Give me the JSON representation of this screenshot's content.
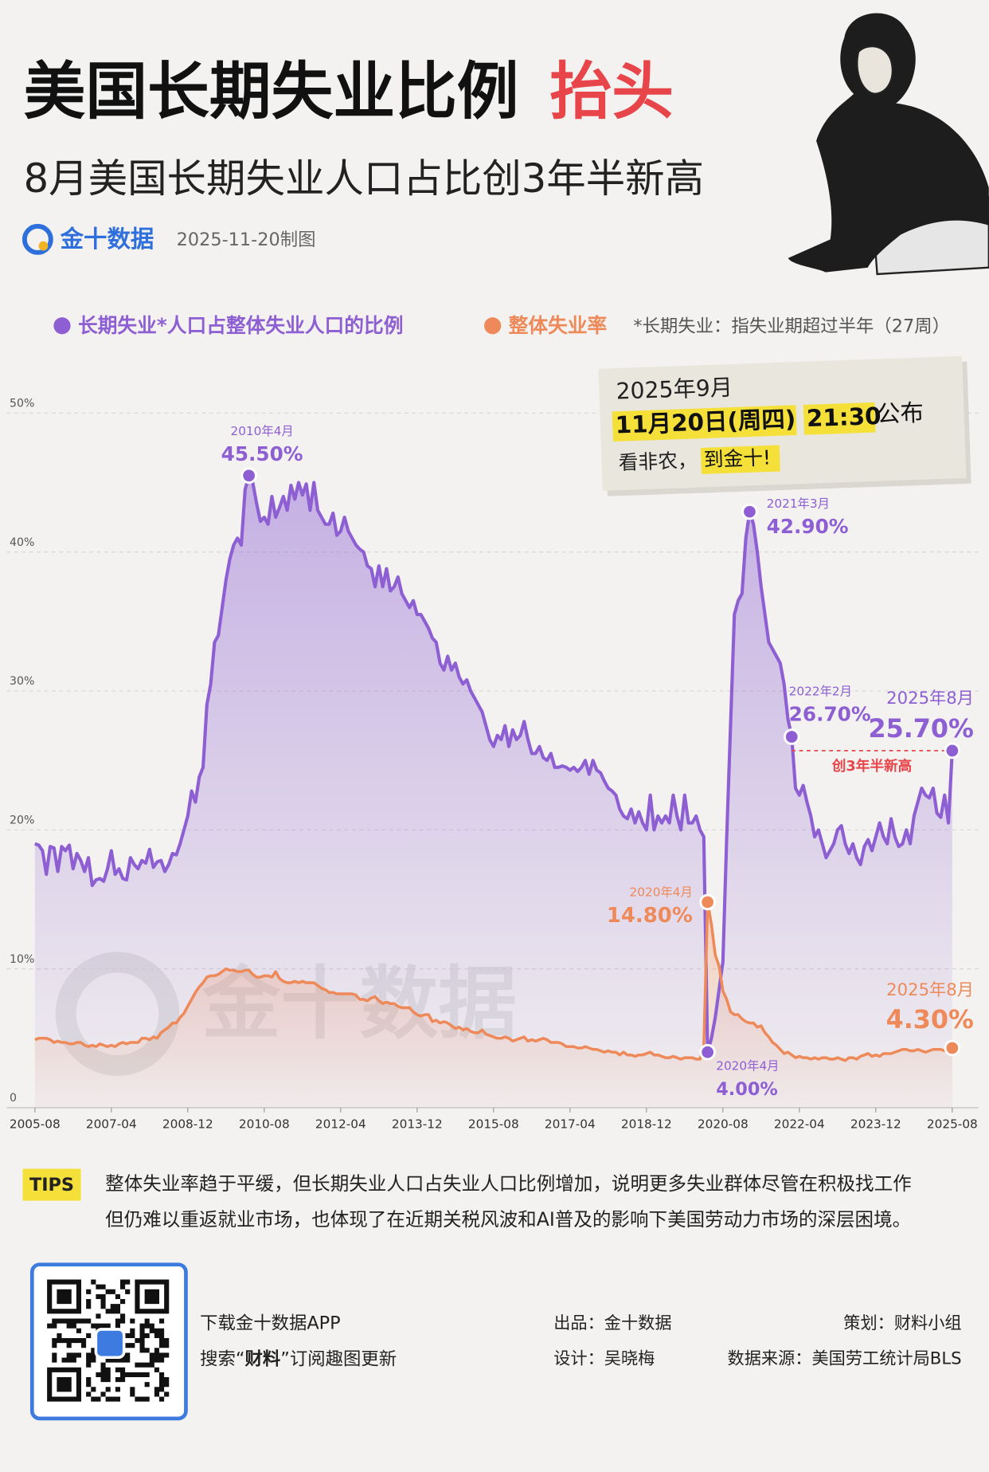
{
  "header": {
    "title": "美国长期失业比例",
    "title_highlight": "抬头",
    "subtitle": "8月美国长期失业人口占比创3年半新高",
    "brand": "金十数据",
    "date": "2025-11-20制图"
  },
  "legend_note": "*长期失业：指失业期超过半年（27周）",
  "callout": {
    "line1": "2025年9月",
    "date": "11月20日(周四)",
    "time": "21:30",
    "publish": "公布",
    "prompt": "看非农，",
    "cta": "到金十!"
  },
  "chart_data": {
    "type": "line",
    "x": [
      "2005-08",
      "2005-09",
      "2005-10",
      "2005-11",
      "2005-12",
      "2006-01",
      "2006-02",
      "2006-03",
      "2006-04",
      "2006-05",
      "2006-06",
      "2006-07",
      "2006-08",
      "2006-09",
      "2006-10",
      "2006-11",
      "2006-12",
      "2007-01",
      "2007-02",
      "2007-03",
      "2007-04",
      "2007-05",
      "2007-06",
      "2007-07",
      "2007-08",
      "2007-09",
      "2007-10",
      "2007-11",
      "2007-12",
      "2008-01",
      "2008-02",
      "2008-03",
      "2008-04",
      "2008-05",
      "2008-06",
      "2008-07",
      "2008-08",
      "2008-09",
      "2008-10",
      "2008-11",
      "2008-12",
      "2009-01",
      "2009-02",
      "2009-03",
      "2009-04",
      "2009-05",
      "2009-06",
      "2009-07",
      "2009-08",
      "2009-09",
      "2009-10",
      "2009-11",
      "2009-12",
      "2010-01",
      "2010-02",
      "2010-03",
      "2010-04",
      "2010-05",
      "2010-06",
      "2010-07",
      "2010-08",
      "2010-09",
      "2010-10",
      "2010-11",
      "2010-12",
      "2011-01",
      "2011-02",
      "2011-03",
      "2011-04",
      "2011-05",
      "2011-06",
      "2011-07",
      "2011-08",
      "2011-09",
      "2011-10",
      "2011-11",
      "2011-12",
      "2012-01",
      "2012-02",
      "2012-03",
      "2012-04",
      "2012-05",
      "2012-06",
      "2012-07",
      "2012-08",
      "2012-09",
      "2012-10",
      "2012-11",
      "2012-12",
      "2013-01",
      "2013-02",
      "2013-03",
      "2013-04",
      "2013-05",
      "2013-06",
      "2013-07",
      "2013-08",
      "2013-09",
      "2013-10",
      "2013-11",
      "2013-12",
      "2014-01",
      "2014-02",
      "2014-03",
      "2014-04",
      "2014-05",
      "2014-06",
      "2014-07",
      "2014-08",
      "2014-09",
      "2014-10",
      "2014-11",
      "2014-12",
      "2015-01",
      "2015-02",
      "2015-03",
      "2015-04",
      "2015-05",
      "2015-06",
      "2015-07",
      "2015-08",
      "2015-09",
      "2015-10",
      "2015-11",
      "2015-12",
      "2016-01",
      "2016-02",
      "2016-03",
      "2016-04",
      "2016-05",
      "2016-06",
      "2016-07",
      "2016-08",
      "2016-09",
      "2016-10",
      "2016-11",
      "2016-12",
      "2017-01",
      "2017-02",
      "2017-03",
      "2017-04",
      "2017-05",
      "2017-06",
      "2017-07",
      "2017-08",
      "2017-09",
      "2017-10",
      "2017-11",
      "2017-12",
      "2018-01",
      "2018-02",
      "2018-03",
      "2018-04",
      "2018-05",
      "2018-06",
      "2018-07",
      "2018-08",
      "2018-09",
      "2018-10",
      "2018-11",
      "2018-12",
      "2019-01",
      "2019-02",
      "2019-03",
      "2019-04",
      "2019-05",
      "2019-06",
      "2019-07",
      "2019-08",
      "2019-09",
      "2019-10",
      "2019-11",
      "2019-12",
      "2020-01",
      "2020-02",
      "2020-03",
      "2020-04",
      "2020-05",
      "2020-06",
      "2020-07",
      "2020-08",
      "2020-09",
      "2020-10",
      "2020-11",
      "2020-12",
      "2021-01",
      "2021-02",
      "2021-03",
      "2021-04",
      "2021-05",
      "2021-06",
      "2021-07",
      "2021-08",
      "2021-09",
      "2021-10",
      "2021-11",
      "2021-12",
      "2022-01",
      "2022-02",
      "2022-03",
      "2022-04",
      "2022-05",
      "2022-06",
      "2022-07",
      "2022-08",
      "2022-09",
      "2022-10",
      "2022-11",
      "2022-12",
      "2023-01",
      "2023-02",
      "2023-03",
      "2023-04",
      "2023-05",
      "2023-06",
      "2023-07",
      "2023-08",
      "2023-09",
      "2023-10",
      "2023-11",
      "2023-12",
      "2024-01",
      "2024-02",
      "2024-03",
      "2024-04",
      "2024-05",
      "2024-06",
      "2024-07",
      "2024-08",
      "2024-09",
      "2024-10",
      "2024-11",
      "2024-12",
      "2025-01",
      "2025-02",
      "2025-03",
      "2025-04",
      "2025-05",
      "2025-06",
      "2025-07",
      "2025-08"
    ],
    "series": [
      {
        "name": "长期失业*人口占整体失业人口的比例",
        "color": "#8d5fd3",
        "values": [
          19.0,
          18.9,
          18.5,
          16.8,
          18.8,
          18.7,
          17.0,
          18.8,
          18.5,
          18.9,
          17.2,
          18.3,
          17.8,
          17.0,
          18.0,
          16.0,
          16.4,
          16.5,
          16.3,
          17.2,
          18.5,
          16.8,
          17.2,
          16.5,
          16.4,
          18.0,
          17.5,
          17.2,
          17.8,
          17.6,
          18.6,
          17.3,
          17.7,
          17.8,
          17.0,
          17.5,
          18.3,
          18.2,
          19.0,
          20.0,
          21.0,
          22.8,
          22.0,
          23.8,
          24.5,
          29.0,
          30.5,
          33.5,
          34.0,
          36.0,
          38.0,
          39.5,
          40.5,
          41.0,
          40.5,
          44.5,
          45.5,
          45.0,
          43.5,
          42.2,
          42.5,
          42.0,
          44.0,
          42.5,
          43.2,
          44.0,
          43.0,
          44.8,
          43.8,
          45.0,
          44.1,
          44.9,
          43.0,
          45.0,
          43.0,
          42.5,
          42.0,
          42.0,
          42.8,
          41.2,
          41.5,
          42.5,
          41.5,
          41.0,
          40.5,
          40.2,
          40.0,
          39.0,
          38.8,
          37.5,
          39.0,
          37.5,
          38.8,
          37.2,
          37.5,
          38.2,
          37.0,
          36.5,
          36.0,
          36.5,
          35.5,
          35.5,
          35.0,
          34.5,
          33.8,
          33.5,
          32.0,
          31.5,
          32.5,
          31.5,
          32.0,
          31.0,
          30.5,
          30.8,
          30.0,
          29.5,
          29.0,
          28.5,
          27.5,
          26.5,
          26.0,
          26.8,
          26.5,
          27.5,
          26.0,
          27.2,
          26.5,
          26.8,
          27.8,
          26.5,
          25.5,
          25.5,
          26.0,
          25.2,
          25.0,
          25.5,
          24.5,
          24.5,
          24.6,
          24.5,
          24.3,
          24.5,
          24.2,
          24.5,
          25.0,
          24.0,
          25.0,
          24.3,
          24.1,
          23.5,
          23.0,
          22.8,
          22.5,
          21.5,
          21.0,
          20.8,
          21.5,
          20.5,
          21.3,
          20.5,
          20.0,
          22.5,
          20.0,
          21.0,
          20.5,
          21.0,
          20.5,
          22.5,
          21.0,
          20.0,
          22.5,
          20.5,
          20.5,
          21.0,
          20.0,
          19.5,
          4.0,
          5.0,
          6.5,
          8.5,
          10.5,
          19.5,
          27.5,
          35.5,
          36.5,
          37.0,
          41.0,
          42.9,
          42.0,
          40.0,
          37.5,
          35.5,
          33.5,
          33.0,
          32.5,
          32.0,
          30.5,
          28.0,
          26.7,
          23.0,
          22.5,
          23.2,
          22.0,
          21.0,
          19.5,
          20.0,
          19.0,
          18.0,
          18.5,
          19.0,
          20.0,
          20.3,
          19.0,
          18.3,
          19.0,
          18.0,
          17.5,
          18.8,
          19.3,
          18.5,
          19.5,
          20.5,
          19.5,
          19.0,
          20.8,
          19.5,
          18.8,
          19.0,
          20.0,
          19.0,
          21.0,
          22.0,
          23.0,
          22.5,
          22.3,
          23.0,
          21.2,
          20.9,
          22.5,
          20.5,
          25.7
        ],
        "annotations": [
          {
            "x": "2010-04",
            "date_label": "2010年4月",
            "value_label": "45.50%"
          },
          {
            "x": "2021-03",
            "date_label": "2021年3月",
            "value_label": "42.90%"
          },
          {
            "x": "2022-02",
            "date_label": "2022年2月",
            "value_label": "26.70%"
          },
          {
            "x": "2025-08",
            "date_label": "2025年8月",
            "value_label": "25.70%"
          },
          {
            "x": "2020-04",
            "date_label": "2020年4月",
            "value_label": "4.00%"
          }
        ]
      },
      {
        "name": "整体失业率",
        "color": "#ee8a5a",
        "values": [
          4.9,
          5.0,
          5.0,
          5.0,
          4.9,
          4.7,
          4.8,
          4.7,
          4.7,
          4.6,
          4.6,
          4.7,
          4.7,
          4.5,
          4.4,
          4.5,
          4.4,
          4.6,
          4.5,
          4.4,
          4.5,
          4.4,
          4.6,
          4.7,
          4.6,
          4.7,
          4.7,
          4.7,
          5.0,
          5.0,
          4.9,
          5.1,
          5.0,
          5.4,
          5.6,
          5.8,
          6.1,
          6.1,
          6.5,
          6.8,
          7.3,
          7.8,
          8.3,
          8.7,
          9.0,
          9.4,
          9.5,
          9.5,
          9.6,
          9.8,
          10.0,
          9.9,
          9.9,
          9.8,
          9.8,
          9.9,
          9.9,
          9.6,
          9.4,
          9.4,
          9.5,
          9.5,
          9.4,
          9.8,
          9.3,
          9.1,
          9.0,
          9.0,
          9.1,
          9.0,
          9.1,
          9.0,
          9.0,
          9.0,
          8.8,
          8.6,
          8.5,
          8.3,
          8.3,
          8.2,
          8.2,
          8.2,
          8.2,
          8.2,
          8.1,
          7.8,
          7.8,
          7.7,
          7.9,
          8.0,
          7.7,
          7.5,
          7.6,
          7.5,
          7.5,
          7.3,
          7.2,
          7.2,
          7.2,
          6.9,
          6.7,
          6.6,
          6.7,
          6.7,
          6.2,
          6.3,
          6.1,
          6.2,
          6.1,
          5.9,
          5.7,
          5.8,
          5.6,
          5.7,
          5.5,
          5.4,
          5.4,
          5.6,
          5.3,
          5.2,
          5.1,
          5.0,
          5.0,
          5.1,
          5.0,
          4.8,
          4.9,
          5.0,
          5.1,
          4.8,
          4.9,
          4.8,
          4.9,
          5.0,
          4.9,
          4.7,
          4.7,
          4.7,
          4.6,
          4.4,
          4.4,
          4.4,
          4.3,
          4.3,
          4.4,
          4.3,
          4.2,
          4.2,
          4.1,
          4.0,
          4.1,
          4.0,
          4.0,
          3.8,
          4.0,
          3.8,
          3.8,
          3.7,
          3.8,
          3.8,
          3.9,
          4.0,
          3.8,
          3.8,
          3.7,
          3.6,
          3.6,
          3.7,
          3.6,
          3.5,
          3.6,
          3.6,
          3.6,
          3.5,
          3.5,
          4.4,
          14.8,
          13.2,
          11.0,
          10.2,
          8.4,
          7.8,
          6.9,
          6.7,
          6.7,
          6.4,
          6.2,
          6.1,
          6.1,
          5.8,
          5.9,
          5.4,
          5.1,
          4.7,
          4.5,
          4.2,
          3.9,
          4.0,
          3.8,
          3.6,
          3.7,
          3.6,
          3.6,
          3.5,
          3.6,
          3.5,
          3.6,
          3.6,
          3.5,
          3.5,
          3.6,
          3.5,
          3.4,
          3.6,
          3.6,
          3.5,
          3.7,
          3.8,
          3.9,
          3.7,
          3.8,
          3.7,
          3.9,
          3.9,
          3.9,
          4.0,
          4.1,
          4.2,
          4.2,
          4.1,
          4.1,
          4.2,
          4.1,
          4.0,
          4.1,
          4.2,
          4.2,
          4.2,
          4.1,
          4.2,
          4.3
        ],
        "annotations": [
          {
            "x": "2020-04",
            "date_label": "2020年4月",
            "value_label": "14.80%"
          },
          {
            "x": "2025-08",
            "date_label": "2025年8月",
            "value_label": "4.30%"
          }
        ]
      }
    ],
    "record_note": "创3年半新高",
    "xlim": [
      "2005-08",
      "2025-08"
    ],
    "xticks": [
      "2005-08",
      "2007-04",
      "2008-12",
      "2010-08",
      "2012-04",
      "2013-12",
      "2015-08",
      "2017-04",
      "2018-12",
      "2020-08",
      "2022-04",
      "2023-12",
      "2025-08"
    ],
    "ylim": [
      0,
      50
    ],
    "yticks": [
      0,
      {
        "value": 10,
        "label": "10%"
      },
      {
        "value": 20,
        "label": "20%"
      },
      {
        "value": 30,
        "label": "30%"
      },
      {
        "value": 40,
        "label": "40%"
      },
      {
        "value": 50,
        "label": "50%"
      }
    ],
    "grid": true
  },
  "tips": {
    "badge": "TIPS",
    "lines": [
      "整体失业率趋于平缓，但长期失业人口占失业人口比例增加，说明更多失业群体尽管在积极找工作",
      "但仍难以重返就业市场，也体现了在近期关税风波和AI普及的影响下美国劳动力市场的深层困境。"
    ]
  },
  "footer": {
    "download": "下载金十数据APP",
    "search_prefix": "搜索“",
    "search_keyword": "财料",
    "search_suffix": "”订阅趣图更新",
    "producer": "出品：金十数据",
    "designer": "设计：吴晓梅",
    "planner": "策划：财料小组",
    "source": "数据来源：美国劳工统计局BLS"
  }
}
